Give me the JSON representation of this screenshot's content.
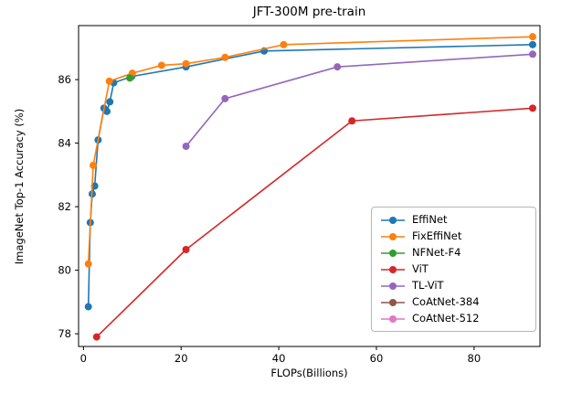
{
  "chart_data": {
    "type": "line",
    "title": "JFT-300M pre-train",
    "xlabel": "FLOPs(Billions)",
    "ylabel": "ImageNet Top-1 Accuracy (%)",
    "xlim": [
      -1,
      93.5
    ],
    "ylim": [
      77.6,
      87.7
    ],
    "xticks": [
      0,
      20,
      40,
      60,
      80
    ],
    "yticks": [
      78,
      80,
      82,
      84,
      86
    ],
    "grid": false,
    "legend_position": "center-right",
    "series": [
      {
        "name": "EffiNet",
        "color": "#1f77b4",
        "marker": "circle",
        "points": [
          [
            1,
            78.85
          ],
          [
            1.4,
            81.5
          ],
          [
            1.8,
            82.4
          ],
          [
            2.3,
            82.65
          ],
          [
            3,
            84.1
          ],
          [
            4.2,
            85.1
          ],
          [
            4.8,
            85.0
          ],
          [
            5.4,
            85.3
          ],
          [
            6.2,
            85.9
          ],
          [
            9.9,
            86.1
          ],
          [
            21,
            86.4
          ],
          [
            37,
            86.9
          ],
          [
            92,
            87.1
          ]
        ]
      },
      {
        "name": "FixEffiNet",
        "color": "#ff7f0e",
        "marker": "circle",
        "points": [
          [
            1,
            80.2
          ],
          [
            2,
            83.3
          ],
          [
            5.3,
            85.95
          ],
          [
            10,
            86.2
          ],
          [
            16,
            86.45
          ],
          [
            21,
            86.5
          ],
          [
            29,
            86.7
          ],
          [
            41,
            87.1
          ],
          [
            92,
            87.35
          ]
        ]
      },
      {
        "name": "NFNet-F4",
        "color": "#2ca02c",
        "marker": "circle",
        "points": [
          [
            9.5,
            86.05
          ]
        ]
      },
      {
        "name": "ViT",
        "color": "#d62728",
        "marker": "circle",
        "points": [
          [
            2.7,
            77.9
          ],
          [
            21,
            80.65
          ],
          [
            55,
            84.7
          ],
          [
            92,
            85.1
          ]
        ]
      },
      {
        "name": "TL-ViT",
        "color": "#9467bd",
        "marker": "circle",
        "points": [
          [
            21,
            83.9
          ],
          [
            29,
            85.4
          ],
          [
            52,
            86.4
          ],
          [
            92,
            86.8
          ]
        ]
      },
      {
        "name": "CoAtNet-384",
        "color": "#8c564b",
        "marker": "circle",
        "points": []
      },
      {
        "name": "CoAtNet-512",
        "color": "#e377c2",
        "marker": "circle",
        "points": []
      }
    ],
    "axis_color": "#000000",
    "tick_font_size": 11.5
  }
}
